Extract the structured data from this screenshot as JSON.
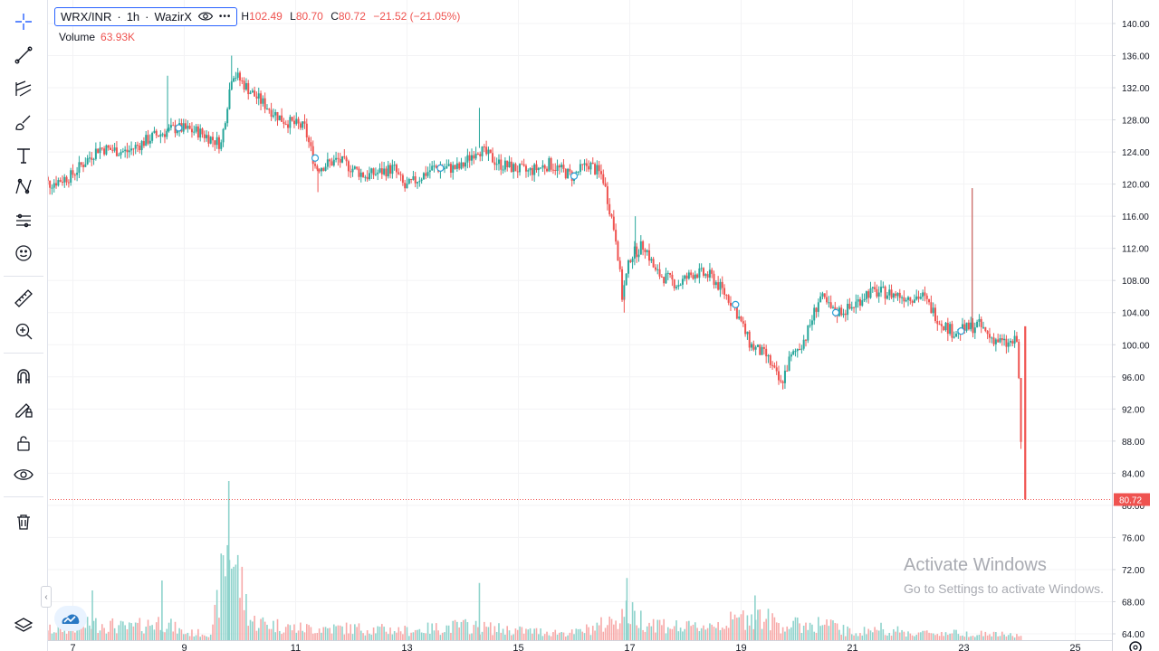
{
  "legend": {
    "symbol": "WRX/INR",
    "interval": "1h",
    "exchange": "WazirX",
    "more_glyph": "•••",
    "high_label": "H",
    "high": "102.49",
    "low_label": "L",
    "low": "80.70",
    "close_label": "C",
    "close": "80.72",
    "change": "−21.52 (−21.05%)",
    "volume_label": "Volume",
    "volume": "63.93K"
  },
  "price_badge": "80.72",
  "watermark": {
    "line1": "Activate Windows",
    "line2": "Go to Settings to activate Windows."
  },
  "colors": {
    "up": "#26a69a",
    "down": "#ef5350",
    "accent": "#2962ff",
    "grid": "#f0f3fa",
    "axis_text": "#131722"
  },
  "toolbar": {
    "items": [
      "crosshair-icon",
      "trend-line-icon",
      "fib-icon",
      "brush-icon",
      "text-icon",
      "pattern-icon",
      "prediction-icon",
      "emoji-icon",
      "ruler-icon",
      "zoom-in-icon",
      "magnet-icon",
      "lock-draw-icon",
      "lock-icon",
      "eye-icon",
      "trash-icon",
      "layers-icon"
    ]
  },
  "chart_data": {
    "type": "candlestick",
    "title": "",
    "symbol": "WRX/INR",
    "interval": "1h",
    "x_ticks": [
      "7",
      "9",
      "11",
      "13",
      "15",
      "17",
      "19",
      "21",
      "23",
      "25"
    ],
    "y_ticks": [
      "140.00",
      "136.00",
      "132.00",
      "128.00",
      "124.00",
      "120.00",
      "116.00",
      "112.00",
      "108.00",
      "104.00",
      "100.00",
      "96.00",
      "92.00",
      "88.00",
      "84.00",
      "80.00",
      "76.00",
      "72.00",
      "68.00",
      "64.00"
    ],
    "ylim": [
      63.7,
      141.5
    ],
    "last_price": 80.72,
    "series": [
      {
        "name": "price_path",
        "points": [
          [
            6.4,
            122.5
          ],
          [
            6.6,
            120.0
          ],
          [
            7.0,
            121.0
          ],
          [
            7.5,
            124.5
          ],
          [
            8.0,
            124.0
          ],
          [
            8.5,
            126.0
          ],
          [
            8.9,
            127.0
          ],
          [
            9.3,
            126.5
          ],
          [
            9.7,
            125.0
          ],
          [
            9.9,
            134.0
          ],
          [
            10.3,
            131.0
          ],
          [
            10.8,
            128.0
          ],
          [
            11.2,
            127.0
          ],
          [
            11.4,
            122.0
          ],
          [
            11.8,
            123.0
          ],
          [
            12.3,
            121.0
          ],
          [
            12.8,
            122.0
          ],
          [
            13.0,
            119.5
          ],
          [
            13.5,
            122.0
          ],
          [
            14.0,
            122.0
          ],
          [
            14.3,
            124.5
          ],
          [
            14.7,
            122.5
          ],
          [
            15.2,
            121.5
          ],
          [
            15.6,
            122.5
          ],
          [
            16.0,
            121.0
          ],
          [
            16.3,
            122.5
          ],
          [
            16.55,
            121.0
          ],
          [
            16.8,
            113.0
          ],
          [
            16.9,
            106.0
          ],
          [
            17.05,
            111.0
          ],
          [
            17.3,
            112.5
          ],
          [
            17.5,
            109.0
          ],
          [
            17.9,
            107.5
          ],
          [
            18.2,
            109.0
          ],
          [
            18.5,
            108.5
          ],
          [
            18.9,
            105.0
          ],
          [
            19.2,
            100.0
          ],
          [
            19.5,
            98.5
          ],
          [
            19.75,
            95.0
          ],
          [
            19.9,
            98.0
          ],
          [
            20.2,
            101.0
          ],
          [
            20.45,
            106.0
          ],
          [
            20.7,
            104.0
          ],
          [
            21.0,
            104.5
          ],
          [
            21.3,
            106.5
          ],
          [
            21.6,
            106.5
          ],
          [
            22.0,
            106.0
          ],
          [
            22.3,
            106.0
          ],
          [
            22.6,
            103.0
          ],
          [
            22.85,
            101.5
          ],
          [
            23.1,
            102.0
          ],
          [
            23.3,
            102.5
          ],
          [
            23.5,
            101.0
          ],
          [
            23.8,
            100.0
          ],
          [
            24.0,
            100.5
          ],
          [
            24.1,
            80.72
          ]
        ]
      },
      {
        "name": "volume_path",
        "points": [
          [
            6.5,
            2.0
          ],
          [
            7.5,
            3.5
          ],
          [
            8.0,
            2.5
          ],
          [
            8.6,
            4.0
          ],
          [
            9.0,
            1.5
          ],
          [
            9.5,
            1.5
          ],
          [
            9.8,
            21.0
          ],
          [
            10.2,
            4.0
          ],
          [
            11.0,
            2.5
          ],
          [
            12.0,
            2.5
          ],
          [
            13.0,
            2.0
          ],
          [
            14.0,
            3.0
          ],
          [
            15.0,
            2.0
          ],
          [
            16.0,
            1.5
          ],
          [
            16.6,
            3.5
          ],
          [
            16.9,
            6.0
          ],
          [
            17.3,
            4.0
          ],
          [
            18.0,
            2.5
          ],
          [
            18.9,
            4.0
          ],
          [
            19.2,
            5.5
          ],
          [
            19.8,
            3.0
          ],
          [
            20.5,
            3.5
          ],
          [
            21.0,
            1.5
          ],
          [
            21.5,
            2.5
          ],
          [
            22.0,
            1.5
          ],
          [
            23.0,
            1.5
          ],
          [
            24.0,
            1.0
          ]
        ]
      }
    ],
    "volume_spikes": [
      [
        7.35,
        10.0
      ],
      [
        8.6,
        12.0
      ],
      [
        9.8,
        32.0
      ],
      [
        14.3,
        11.5
      ],
      [
        16.95,
        12.5
      ],
      [
        19.25,
        9.0
      ]
    ],
    "wick_spikes": [
      [
        9.85,
        136.0
      ],
      [
        8.7,
        133.5
      ],
      [
        14.3,
        129.5
      ],
      [
        23.15,
        119.5
      ],
      [
        17.1,
        116.0
      ],
      [
        11.4,
        119.0
      ],
      [
        16.9,
        104.0
      ],
      [
        19.75,
        94.5
      ]
    ],
    "volume_unit": "K"
  }
}
